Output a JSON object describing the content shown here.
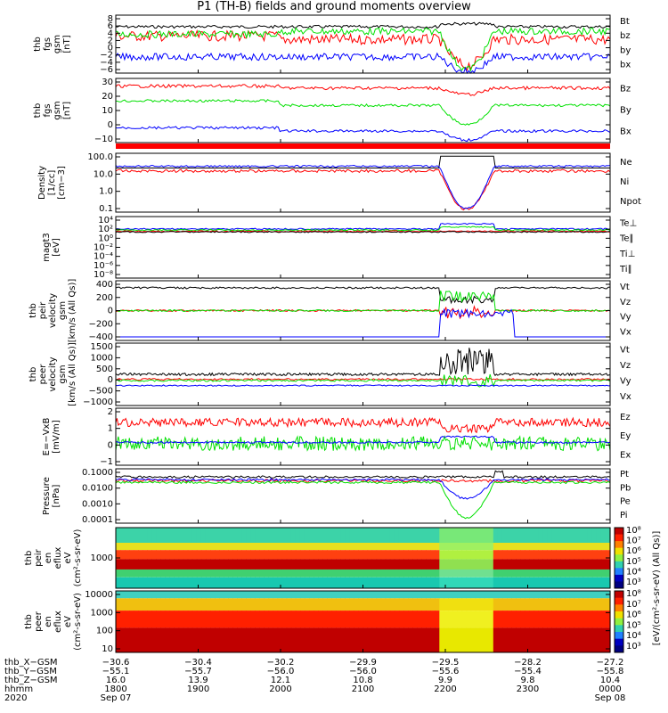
{
  "title": "P1 (TH-B) fields and ground moments overview",
  "colors": {
    "black": "#000000",
    "red": "#ff0000",
    "green": "#00e000",
    "blue": "#0000ff"
  },
  "panels": [
    {
      "id": "fgs-gsm",
      "ylabel_lines": [
        "thb",
        "fgs",
        "gsm",
        "[nT]"
      ],
      "ticks": [
        "8",
        "6",
        "4",
        "2",
        "0",
        "−2",
        "−4",
        "−6"
      ],
      "legend": [
        {
          "text": "Bt",
          "color": "#000000"
        },
        {
          "text": "bz",
          "color": "#ff0000"
        },
        {
          "text": "by",
          "color": "#00e000"
        },
        {
          "text": "bx",
          "color": "#0000ff"
        }
      ]
    },
    {
      "id": "fgs-gsm-2",
      "ylabel_lines": [
        "thb",
        "fgs",
        "gsm",
        "[nT]"
      ],
      "ticks": [
        "30",
        "20",
        "10",
        "0",
        "−10"
      ],
      "legend": [
        {
          "text": "Bz",
          "color": "#ff0000"
        },
        {
          "text": "By",
          "color": "#00e000"
        },
        {
          "text": "Bx",
          "color": "#0000ff"
        }
      ]
    },
    {
      "id": "density",
      "ylabel_lines": [
        "Density",
        "[1/cc]",
        "[cm−3]"
      ],
      "ticks": [
        "100.0",
        "10.0",
        "1.0",
        "0.1"
      ],
      "legend": [
        {
          "text": "Ne",
          "color": "#ff0000"
        },
        {
          "text": "Ni",
          "color": "#000000"
        },
        {
          "text": "Npot",
          "color": "#0000ff"
        }
      ]
    },
    {
      "id": "temperature",
      "ylabel_lines": [
        "magt3",
        "[eV]"
      ],
      "ticks": [
        "10⁴",
        "10²",
        "10⁰",
        "10⁻²",
        "10⁻⁴",
        "10⁻⁶",
        "10⁻⁸"
      ],
      "legend": [
        {
          "text": "Te⊥",
          "color": "#ff0000"
        },
        {
          "text": "Te∥",
          "color": "#000000"
        },
        {
          "text": "Ti⊥",
          "color": "#00e000"
        },
        {
          "text": "Ti∥",
          "color": "#00e000"
        }
      ]
    },
    {
      "id": "peir-velocity",
      "ylabel_lines": [
        "thb",
        "peir",
        "velocity",
        "gsm",
        "[km/s (All Qs)]"
      ],
      "ticks": [
        "400",
        "200",
        "0",
        "−200",
        "−400"
      ],
      "legend": [
        {
          "text": "Vt",
          "color": "#000000"
        },
        {
          "text": "Vz",
          "color": "#ff0000"
        },
        {
          "text": "Vy",
          "color": "#00e000"
        },
        {
          "text": "Vx",
          "color": "#0000ff"
        }
      ]
    },
    {
      "id": "peer-velocity",
      "ylabel_lines": [
        "thb",
        "peer",
        "velocity",
        "gsm",
        "[km/s (All Qs)]"
      ],
      "ticks": [
        "1500",
        "1000",
        "500",
        "0",
        "−500",
        "−1000"
      ],
      "legend": [
        {
          "text": "Vt",
          "color": "#000000"
        },
        {
          "text": "Vz",
          "color": "#ff0000"
        },
        {
          "text": "Vy",
          "color": "#00e000"
        },
        {
          "text": "Vx",
          "color": "#0000ff"
        }
      ]
    },
    {
      "id": "efield",
      "ylabel_lines": [
        "E=−VxB",
        "[mV/m]"
      ],
      "ticks": [
        "2",
        "1",
        "0",
        "−1"
      ],
      "legend": [
        {
          "text": "Ez",
          "color": "#ff0000"
        },
        {
          "text": "Ey",
          "color": "#00e000"
        },
        {
          "text": "Ex",
          "color": "#0000ff"
        }
      ]
    },
    {
      "id": "pressure",
      "ylabel_lines": [
        "Pressure",
        "[nPa]"
      ],
      "ticks": [
        "0.1000",
        "0.0100",
        "0.0010",
        "0.0001"
      ],
      "legend": [
        {
          "text": "Pt",
          "color": "#000000"
        },
        {
          "text": "Pb",
          "color": "#ff0000"
        },
        {
          "text": "Pe",
          "color": "#00e000"
        },
        {
          "text": "Pi",
          "color": "#0000ff"
        }
      ]
    },
    {
      "id": "peir-eflux",
      "ylabel_lines": [
        "thb",
        "peir",
        "en",
        "eflux",
        "eV",
        "(cm²-s-sr-eV)"
      ],
      "ticks": [
        "1000"
      ],
      "legend": []
    },
    {
      "id": "peer-eflux",
      "ylabel_lines": [
        "thb",
        "peer",
        "en",
        "eflux",
        "eV",
        "(cm²-s-sr-eV)"
      ],
      "ticks": [
        "10000",
        "1000",
        "100",
        "10"
      ],
      "legend": []
    }
  ],
  "colorbar": {
    "ticks": [
      "10⁸",
      "10⁷",
      "10⁶",
      "10⁵",
      "10⁴",
      "10³"
    ],
    "label": "[eV/(cm²-s-sr-eV) (All Qs)]"
  },
  "footer": {
    "rows": [
      {
        "label": "thb_X−GSM",
        "values": [
          "−30.6",
          "−30.4",
          "−30.2",
          "−29.9",
          "−29.5",
          "−28.2",
          "−27.2"
        ]
      },
      {
        "label": "thb_Y−GSM",
        "values": [
          "−55.1",
          "−55.7",
          "−56.0",
          "−56.0",
          "−55.6",
          "−55.4",
          "−55.8"
        ]
      },
      {
        "label": "thb_Z−GSM",
        "values": [
          "16.0",
          "13.9",
          "12.1",
          "10.8",
          "9.9",
          "9.8",
          "10.4"
        ]
      },
      {
        "label": "hhmm",
        "values": [
          "1800",
          "1900",
          "2000",
          "2100",
          "2200",
          "2300",
          "0000"
        ]
      },
      {
        "label": "2020",
        "values": [
          "Sep 07",
          "",
          "",
          "",
          "",
          "",
          "Sep 08"
        ]
      }
    ]
  },
  "chart_data": {
    "type": "line",
    "x_ticks": [
      "1800",
      "1900",
      "2000",
      "2100",
      "2200",
      "2300",
      "0000"
    ],
    "series_summary": [
      {
        "panel": "fgs-gsm",
        "name": "Bt",
        "values": [
          5,
          5,
          5,
          6,
          5,
          6
        ]
      },
      {
        "panel": "fgs-gsm",
        "name": "bz",
        "values": [
          3,
          2,
          3,
          2,
          -3,
          2
        ]
      },
      {
        "panel": "fgs-gsm",
        "name": "by",
        "values": [
          4,
          3,
          5,
          4,
          -5,
          5
        ]
      },
      {
        "panel": "fgs-gsm",
        "name": "bx",
        "values": [
          -2,
          -3,
          -3,
          -3,
          -6,
          -3
        ]
      }
    ]
  }
}
